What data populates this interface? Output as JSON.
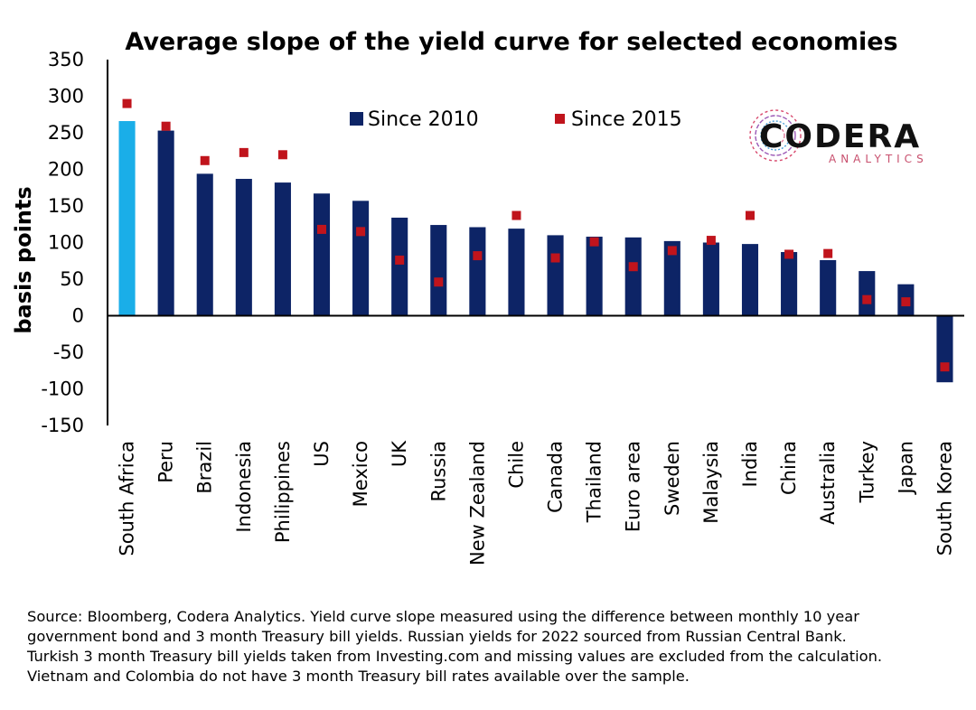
{
  "chart_data": {
    "type": "bar",
    "title": "Average slope of the yield curve for selected economies",
    "ylabel": "basis points",
    "xlabel": "",
    "ylim": [
      -150,
      350
    ],
    "yticks": [
      -150,
      -100,
      -50,
      0,
      50,
      100,
      150,
      200,
      250,
      300,
      350
    ],
    "categories": [
      "South Africa",
      "Peru",
      "Brazil",
      "Indonesia",
      "Philippines",
      "US",
      "Mexico",
      "UK",
      "Russia",
      "New Zealand",
      "Chile",
      "Canada",
      "Thailand",
      "Euro area",
      "Sweden",
      "Malaysia",
      "India",
      "China",
      "Australia",
      "Turkey",
      "Japan",
      "South Korea"
    ],
    "series": [
      {
        "name": "Since 2010",
        "kind": "bar",
        "color": "#0d2466",
        "highlight_color": "#1aaee8",
        "highlight_index": 0,
        "values": [
          266,
          253,
          194,
          187,
          182,
          167,
          157,
          134,
          124,
          121,
          119,
          110,
          108,
          107,
          102,
          100,
          98,
          87,
          76,
          61,
          43,
          -91
        ]
      },
      {
        "name": "Since 2015",
        "kind": "marker",
        "color": "#c0141c",
        "values": [
          290,
          259,
          212,
          223,
          220,
          118,
          115,
          76,
          46,
          82,
          137,
          79,
          101,
          67,
          89,
          103,
          137,
          84,
          85,
          22,
          19,
          -70
        ]
      }
    ],
    "legend_position": "top-center",
    "grid": false
  },
  "logo": {
    "name": "CODERA",
    "sub": "ANALYTICS"
  },
  "source_lines": [
    "Source: Bloomberg, Codera Analytics. Yield curve slope measured using the difference between monthly 10 year",
    "government bond  and 3 month Treasury bill yields. Russian yields for 2022 sourced from Russian Central Bank.",
    "Turkish 3 month Treasury bill yields taken from Investing.com and missing values are excluded from the calculation.",
    "Vietnam and Colombia do not have 3 month Treasury bill rates available over the sample."
  ]
}
